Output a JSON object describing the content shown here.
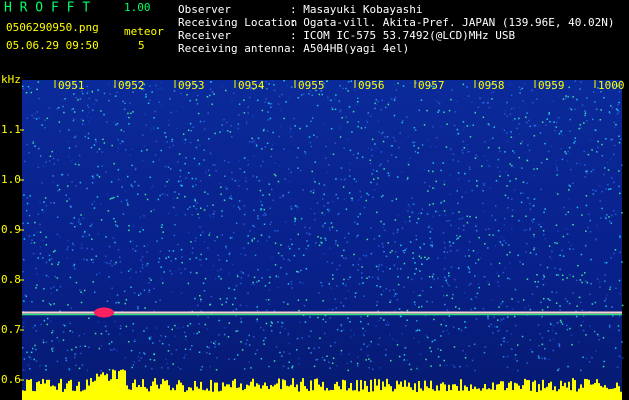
{
  "header": {
    "app_name": "H R O F F T",
    "version": "1.00",
    "file_name": "0506290950.png",
    "date_time": "05.06.29 09:50",
    "meteor_label": "meteor",
    "meteor_count": 5,
    "fields": [
      {
        "label": "Observer",
        "value": ": Masayuki Kobayashi"
      },
      {
        "label": "Receiving Location",
        "value": ": Ogata-vill. Akita-Pref. JAPAN (139.96E, 40.02N)"
      },
      {
        "label": "Receiver",
        "value": ": ICOM IC-575 53.7492(@LCD)MHz USB"
      },
      {
        "label": "Receiving antenna",
        "value": ": A504HB(yagi 4el)"
      }
    ]
  },
  "spectrogram": {
    "y_unit": "kHz",
    "ylim": [
      0.56,
      1.2
    ],
    "yticks": [
      {
        "value": 1.1,
        "label": "1.1"
      },
      {
        "value": 1,
        "label": "1.0"
      },
      {
        "value": 0.9,
        "label": "0.9"
      },
      {
        "value": 0.8,
        "label": "0.8"
      },
      {
        "value": 0.7,
        "label": "0.7"
      },
      {
        "value": 0.6,
        "label": "0.6"
      }
    ],
    "time_labels": [
      "0951",
      "0952",
      "0953",
      "0954",
      "0955",
      "0956",
      "0957",
      "0958",
      "0959",
      "1000"
    ],
    "carrier_khz": 0.735
  }
}
